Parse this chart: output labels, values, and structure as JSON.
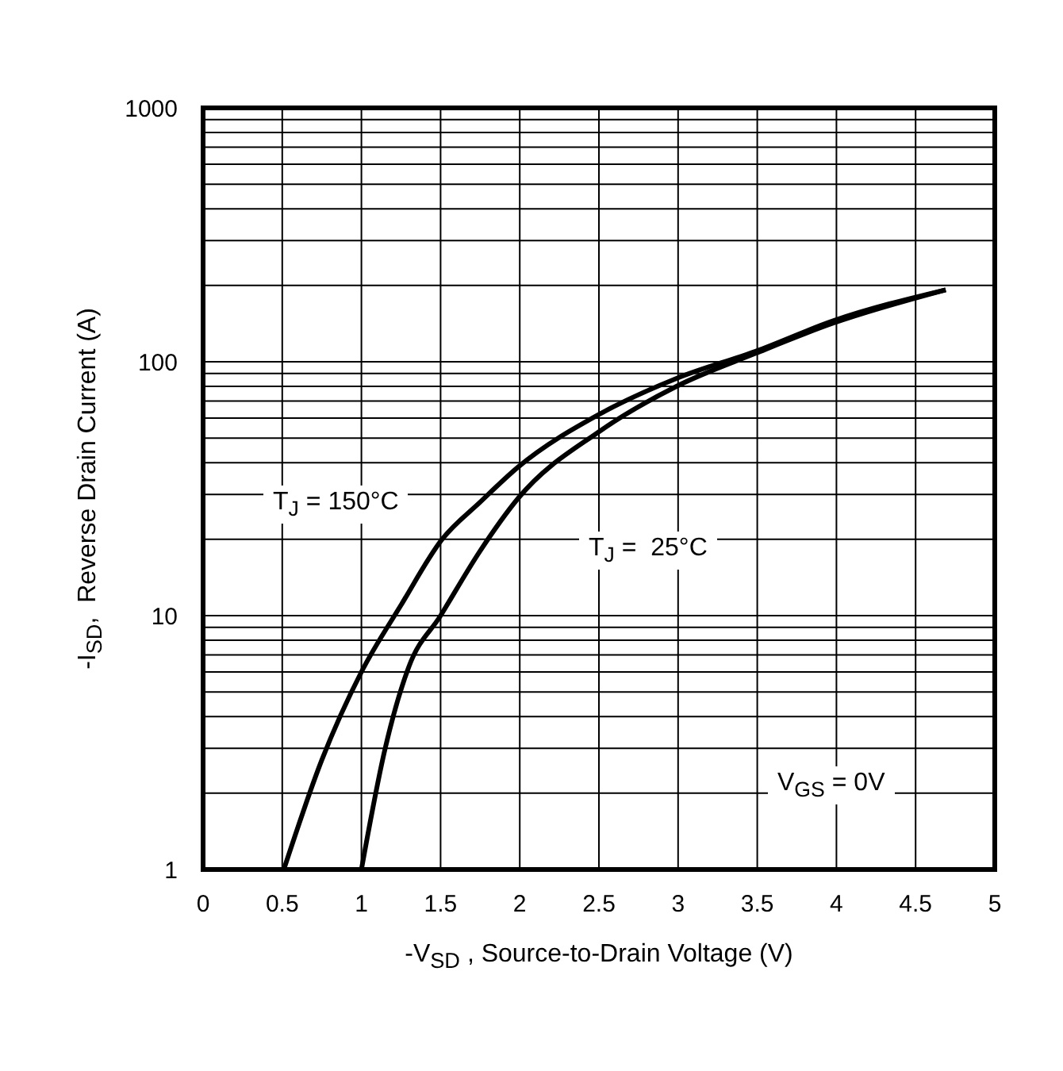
{
  "chart_data": {
    "type": "line",
    "xlabel": "-V$_{SD}$ , Source-to-Drain Voltage (V)",
    "ylabel": "-I$_{SD}$,  Reverse Drain Current (A)",
    "series": [
      {
        "color": "#000000",
        "x": [
          0.51,
          0.75,
          1.0,
          1.25,
          1.51,
          1.75,
          1.99,
          2.5,
          2.99,
          3.49,
          3.98,
          4.69
        ],
        "values": [
          1,
          2.7,
          6.0,
          11,
          20,
          28,
          38.5,
          62,
          86,
          110,
          145,
          192
        ]
      },
      {
        "color": "#000000",
        "x": [
          1.0,
          1.15,
          1.3,
          1.5,
          1.75,
          1.99,
          2.5,
          2.99,
          3.49,
          3.98,
          4.69
        ],
        "values": [
          1,
          3.0,
          6.3,
          10,
          18,
          29,
          53,
          80,
          108,
          142,
          192
        ]
      }
    ],
    "xlim": [
      0,
      5
    ],
    "xticks": [
      0,
      0.5,
      1,
      1.5,
      2,
      2.5,
      3,
      3.5,
      4,
      4.5,
      5
    ],
    "ylim": [
      1,
      1000
    ],
    "yticks": [
      1,
      {
        "value": 2,
        "label": null
      },
      {
        "value": 3,
        "label": null
      },
      {
        "value": 4,
        "label": null
      },
      {
        "value": 5,
        "label": null
      },
      {
        "value": 6,
        "label": null
      },
      {
        "value": 7,
        "label": null
      },
      {
        "value": 8,
        "label": null
      },
      {
        "value": 9,
        "label": null
      },
      10,
      {
        "value": 20,
        "label": null
      },
      {
        "value": 30,
        "label": null
      },
      {
        "value": 40,
        "label": null
      },
      {
        "value": 50,
        "label": null
      },
      {
        "value": 60,
        "label": null
      },
      {
        "value": 70,
        "label": null
      },
      {
        "value": 80,
        "label": null
      },
      {
        "value": 90,
        "label": null
      },
      100,
      {
        "value": 200,
        "label": null
      },
      {
        "value": 300,
        "label": null
      },
      {
        "value": 400,
        "label": null
      },
      {
        "value": 500,
        "label": null
      },
      {
        "value": 600,
        "label": null
      },
      {
        "value": 700,
        "label": null
      },
      {
        "value": 800,
        "label": null
      },
      {
        "value": 900,
        "label": null
      },
      1000
    ],
    "log": "y",
    "grid": true,
    "legend": false,
    "marker": "none",
    "line_style": "solid",
    "annotations": [
      "T$_{J}$ = 150°C",
      "T$_{J}$ =  25°C",
      "V$_{GS}$ = 0V"
    ]
  }
}
